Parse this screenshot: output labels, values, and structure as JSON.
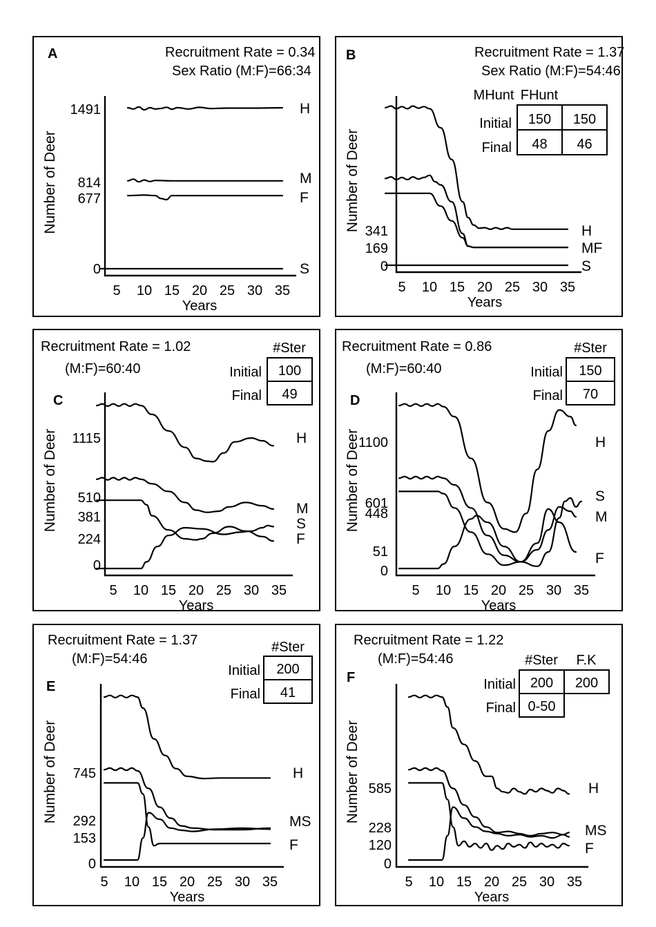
{
  "chart_data": [
    {
      "id": "A",
      "type": "line",
      "title": "Recruitment Rate = 0.34",
      "subtitle": "Sex Ratio (M:F)=66:34",
      "xlabel": "Years",
      "ylabel": "Number of Deer",
      "xticks": [
        "5",
        "10",
        "15",
        "20",
        "25",
        "30",
        "35"
      ],
      "ytick_labels": [
        "1491",
        "814",
        "677",
        "0"
      ],
      "xlim": [
        2,
        35
      ],
      "ylim": [
        0,
        1600
      ],
      "series": [
        {
          "name": "H",
          "x": [
            7,
            8,
            9,
            10,
            11,
            12,
            13,
            14,
            15,
            16,
            18,
            20,
            22,
            25,
            30,
            35
          ],
          "values": [
            1491,
            1480,
            1498,
            1472,
            1492,
            1480,
            1485,
            1496,
            1478,
            1492,
            1480,
            1495,
            1484,
            1488,
            1488,
            1491
          ]
        },
        {
          "name": "M",
          "x": [
            7,
            8,
            9,
            10,
            11,
            12,
            15,
            20,
            25,
            30,
            35
          ],
          "values": [
            814,
            830,
            805,
            822,
            808,
            818,
            814,
            814,
            814,
            814,
            814
          ]
        },
        {
          "name": "F",
          "x": [
            7,
            10,
            12,
            13,
            14,
            15,
            20,
            25,
            30,
            35
          ],
          "values": [
            677,
            682,
            677,
            650,
            640,
            677,
            677,
            677,
            677,
            677
          ]
        },
        {
          "name": "S",
          "x": [
            2,
            35
          ],
          "values": [
            0,
            0
          ]
        }
      ]
    },
    {
      "id": "B",
      "type": "line",
      "title": "Recruitment Rate = 1.37",
      "subtitle": "Sex Ratio (M:F)=54:46",
      "xlabel": "Years",
      "ylabel": "Number of Deer",
      "xticks": [
        "5",
        "10",
        "15",
        "20",
        "25",
        "30",
        "35"
      ],
      "ytick_labels": [
        "341",
        "169",
        "0"
      ],
      "xlim": [
        2,
        35
      ],
      "ylim": [
        0,
        1600
      ],
      "table": {
        "headers": [
          "MHunt",
          "FHunt"
        ],
        "rows": [
          {
            "label": "Initial",
            "values": [
              "150",
              "150"
            ]
          },
          {
            "label": "Final",
            "values": [
              "48",
              "46"
            ]
          }
        ]
      },
      "series": [
        {
          "name": "H",
          "x": [
            2,
            3,
            4,
            5,
            6,
            7,
            8,
            9,
            10,
            12,
            14,
            16,
            17,
            18,
            19,
            20,
            21,
            22,
            23,
            24,
            25,
            30,
            35
          ],
          "values": [
            1490,
            1505,
            1480,
            1500,
            1480,
            1505,
            1485,
            1500,
            1480,
            1300,
            1000,
            600,
            450,
            380,
            350,
            355,
            340,
            355,
            340,
            355,
            341,
            341,
            341
          ]
        },
        {
          "name": "M",
          "x": [
            2,
            3,
            4,
            5,
            6,
            7,
            8,
            9,
            10,
            11,
            12,
            14,
            16,
            17,
            18,
            19,
            20,
            25,
            30,
            35
          ],
          "values": [
            820,
            835,
            810,
            830,
            810,
            835,
            815,
            830,
            850,
            790,
            760,
            600,
            300,
            180,
            169,
            169,
            169,
            169,
            169,
            169
          ]
        },
        {
          "name": "F",
          "x": [
            2,
            5,
            10,
            12,
            14,
            16,
            17,
            18,
            20,
            25,
            30,
            35
          ],
          "values": [
            680,
            680,
            680,
            560,
            420,
            260,
            180,
            169,
            169,
            169,
            169,
            169
          ]
        },
        {
          "name": "S",
          "x": [
            2,
            35
          ],
          "values": [
            0,
            0
          ]
        }
      ],
      "series_labels_note": "MF"
    },
    {
      "id": "C",
      "type": "line",
      "title": "Recruitment Rate = 1.02",
      "subtitle": "(M:F)=60:40",
      "xlabel": "Years",
      "ylabel": "Number of Deer",
      "xticks": [
        "5",
        "10",
        "15",
        "20",
        "25",
        "30",
        "35"
      ],
      "ytick_labels": [
        "1115",
        "510",
        "381",
        "224",
        "0"
      ],
      "xlim": [
        2,
        35
      ],
      "ylim": [
        0,
        1600
      ],
      "table": {
        "headers": [
          "#Ster"
        ],
        "rows": [
          {
            "label": "Initial",
            "values": [
              "100"
            ]
          },
          {
            "label": "Final",
            "values": [
              "49"
            ]
          }
        ]
      },
      "series": [
        {
          "name": "H",
          "x": [
            2,
            3,
            4,
            5,
            6,
            7,
            8,
            9,
            10,
            12,
            15,
            18,
            20,
            22,
            23,
            25,
            27,
            30,
            32,
            34
          ],
          "values": [
            1480,
            1495,
            1475,
            1495,
            1475,
            1495,
            1475,
            1495,
            1480,
            1400,
            1250,
            1100,
            1000,
            975,
            970,
            1050,
            1150,
            1185,
            1160,
            1115
          ]
        },
        {
          "name": "M",
          "x": [
            2,
            3,
            4,
            5,
            6,
            7,
            8,
            9,
            10,
            12,
            15,
            18,
            20,
            22,
            24,
            26,
            29,
            32,
            34
          ],
          "values": [
            810,
            825,
            805,
            825,
            805,
            825,
            805,
            825,
            810,
            770,
            700,
            600,
            530,
            510,
            520,
            560,
            600,
            570,
            540
          ]
        },
        {
          "name": "F",
          "x": [
            2,
            10,
            11,
            12,
            15,
            18,
            20,
            21,
            23,
            26,
            29,
            32,
            34
          ],
          "values": [
            620,
            620,
            580,
            480,
            350,
            270,
            260,
            270,
            320,
            380,
            340,
            290,
            250
          ]
        },
        {
          "name": "S",
          "x": [
            2,
            10,
            11,
            13,
            15,
            18,
            21,
            25,
            28,
            30,
            32,
            33,
            34
          ],
          "values": [
            0,
            0,
            60,
            200,
            300,
            370,
            360,
            310,
            330,
            340,
            370,
            390,
            380
          ]
        }
      ]
    },
    {
      "id": "D",
      "type": "line",
      "title": "Recruitment Rate = 0.86",
      "subtitle": "(M:F)=60:40",
      "xlabel": "Years",
      "ylabel": "Number of Deer",
      "xticks": [
        "5",
        "10",
        "15",
        "20",
        "25",
        "30",
        "35"
      ],
      "ytick_labels": [
        "1100",
        "601",
        "448",
        "51",
        "0"
      ],
      "xlim": [
        2,
        35
      ],
      "ylim": [
        0,
        1600
      ],
      "table": {
        "headers": [
          "#Ster"
        ],
        "rows": [
          {
            "label": "Initial",
            "values": [
              "150"
            ]
          },
          {
            "label": "Final",
            "values": [
              "70"
            ]
          }
        ]
      },
      "series": [
        {
          "name": "H",
          "x": [
            2,
            3,
            4,
            5,
            6,
            7,
            8,
            9,
            10,
            12,
            15,
            18,
            21,
            23,
            25,
            27,
            29,
            31,
            33,
            34
          ],
          "values": [
            1480,
            1495,
            1475,
            1495,
            1475,
            1495,
            1475,
            1495,
            1470,
            1380,
            1000,
            600,
            360,
            330,
            500,
            900,
            1250,
            1440,
            1380,
            1300
          ]
        },
        {
          "name": "M",
          "x": [
            2,
            3,
            4,
            5,
            6,
            7,
            8,
            9,
            10,
            12,
            15,
            18,
            21,
            24,
            27,
            29,
            31,
            33,
            34
          ],
          "values": [
            820,
            835,
            815,
            835,
            815,
            835,
            815,
            835,
            820,
            760,
            550,
            300,
            120,
            60,
            170,
            350,
            560,
            520,
            470
          ]
        },
        {
          "name": "F",
          "x": [
            2,
            9,
            10,
            12,
            15,
            18,
            21,
            24,
            27,
            29,
            31,
            34
          ],
          "values": [
            700,
            700,
            680,
            550,
            330,
            130,
            30,
            60,
            230,
            540,
            420,
            150
          ]
        },
        {
          "name": "S",
          "x": [
            2,
            9,
            10,
            12,
            15,
            16,
            18,
            21,
            24,
            27,
            29,
            31,
            32,
            33,
            34,
            35
          ],
          "values": [
            0,
            0,
            40,
            200,
            450,
            480,
            420,
            200,
            60,
            20,
            150,
            460,
            610,
            640,
            560,
            610
          ]
        }
      ]
    },
    {
      "id": "E",
      "type": "line",
      "title": "Recruitment Rate = 1.37",
      "subtitle": "(M:F)=54:46",
      "xlabel": "Years",
      "ylabel": "Number of Deer",
      "xticks": [
        "5",
        "10",
        "15",
        "20",
        "25",
        "30",
        "35"
      ],
      "ytick_labels": [
        "745",
        "292",
        "153",
        "0"
      ],
      "xlim": [
        2,
        35
      ],
      "ylim": [
        0,
        1600
      ],
      "table": {
        "headers": [
          "#Ster"
        ],
        "rows": [
          {
            "label": "Initial",
            "values": [
              "200"
            ]
          },
          {
            "label": "Final",
            "values": [
              "41"
            ]
          }
        ]
      },
      "series": [
        {
          "name": "H",
          "x": [
            5,
            6,
            7,
            8,
            9,
            10,
            11,
            12,
            14,
            16,
            18,
            20,
            23,
            26,
            30,
            35
          ],
          "values": [
            1480,
            1495,
            1475,
            1495,
            1475,
            1495,
            1480,
            1380,
            1100,
            950,
            830,
            760,
            740,
            745,
            745,
            745
          ]
        },
        {
          "name": "M",
          "x": [
            5,
            6,
            7,
            8,
            9,
            10,
            11,
            13,
            15,
            17,
            19,
            21,
            25,
            30,
            35
          ],
          "values": [
            820,
            835,
            815,
            835,
            815,
            835,
            810,
            650,
            480,
            380,
            310,
            290,
            275,
            275,
            290
          ]
        },
        {
          "name": "F",
          "x": [
            5,
            11,
            12,
            13,
            14,
            15,
            20,
            25,
            30,
            35
          ],
          "values": [
            700,
            700,
            600,
            300,
            130,
            150,
            150,
            150,
            150,
            150
          ]
        },
        {
          "name": "S",
          "x": [
            5,
            11,
            12,
            13,
            15,
            17,
            19,
            21,
            25,
            30,
            35
          ],
          "values": [
            0,
            0,
            200,
            430,
            370,
            290,
            270,
            260,
            280,
            290,
            280
          ]
        }
      ]
    },
    {
      "id": "F",
      "type": "line",
      "title": "Recruitment Rate = 1.22",
      "subtitle": "(M:F)=54:46",
      "xlabel": "Years",
      "ylabel": "Number of Deer",
      "xticks": [
        "5",
        "10",
        "15",
        "20",
        "25",
        "30",
        "35"
      ],
      "ytick_labels": [
        "585",
        "228",
        "120",
        "0"
      ],
      "xlim": [
        2,
        35
      ],
      "ylim": [
        0,
        1600
      ],
      "table": {
        "headers": [
          "#Ster",
          "F.K"
        ],
        "rows": [
          {
            "label": "Initial",
            "values": [
              "200",
              "200"
            ]
          },
          {
            "label": "Final",
            "values": [
              "0-50",
              ""
            ]
          }
        ]
      },
      "series": [
        {
          "name": "H",
          "x": [
            5,
            6,
            7,
            8,
            9,
            10,
            11,
            12,
            13,
            15,
            17,
            19,
            20,
            21,
            22,
            23,
            24,
            25,
            26,
            27,
            28,
            29,
            30,
            31,
            32,
            33,
            34
          ],
          "values": [
            1480,
            1495,
            1475,
            1495,
            1475,
            1495,
            1480,
            1390,
            1200,
            1050,
            900,
            760,
            760,
            650,
            620,
            610,
            650,
            620,
            600,
            640,
            620,
            650,
            630,
            610,
            650,
            630,
            600
          ]
        },
        {
          "name": "M",
          "x": [
            5,
            6,
            7,
            8,
            9,
            10,
            11,
            13,
            15,
            17,
            19,
            21,
            23,
            25,
            27,
            29,
            31,
            33,
            34
          ],
          "values": [
            820,
            835,
            815,
            835,
            815,
            835,
            810,
            650,
            500,
            390,
            300,
            250,
            260,
            240,
            220,
            240,
            250,
            230,
            250
          ]
        },
        {
          "name": "F",
          "x": [
            5,
            11,
            12,
            13,
            14,
            15,
            16,
            17,
            18,
            19,
            20,
            21,
            22,
            23,
            24,
            25,
            26,
            27,
            28,
            29,
            30,
            31,
            32,
            33,
            34
          ],
          "values": [
            700,
            700,
            550,
            300,
            130,
            170,
            120,
            150,
            110,
            150,
            90,
            130,
            100,
            150,
            120,
            140,
            110,
            160,
            120,
            150,
            120,
            140,
            110,
            150,
            130
          ]
        },
        {
          "name": "S",
          "x": [
            5,
            11,
            12,
            13,
            15,
            17,
            19,
            21,
            23,
            25,
            27,
            29,
            31,
            33,
            34
          ],
          "values": [
            0,
            0,
            220,
            480,
            380,
            300,
            260,
            240,
            220,
            230,
            210,
            220,
            200,
            230,
            210
          ]
        }
      ]
    }
  ]
}
